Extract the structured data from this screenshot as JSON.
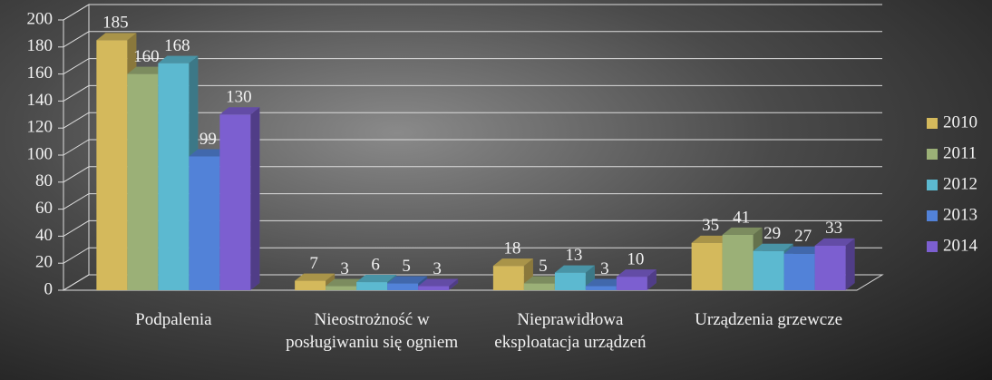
{
  "chart_data": {
    "type": "bar3d",
    "categories": [
      "Podpalenia",
      "Nieostrożność w posługiwaniu się ogniem",
      "Nieprawidłowa eksploatacja urządzeń",
      "Urządzenia grzewcze"
    ],
    "series": [
      {
        "name": "2010",
        "color": "#d4b95c",
        "values": [
          185,
          7,
          18,
          35
        ]
      },
      {
        "name": "2011",
        "color": "#9bb077",
        "values": [
          160,
          3,
          5,
          41
        ]
      },
      {
        "name": "2012",
        "color": "#5cb9d0",
        "values": [
          168,
          6,
          13,
          29
        ]
      },
      {
        "name": "2013",
        "color": "#5282d8",
        "values": [
          99,
          5,
          3,
          27
        ]
      },
      {
        "name": "2014",
        "color": "#7c5fd0",
        "values": [
          130,
          3,
          10,
          33
        ]
      }
    ],
    "ylim": [
      0,
      200
    ],
    "yticks": [
      0,
      20,
      40,
      60,
      80,
      100,
      120,
      140,
      160,
      180,
      200
    ],
    "grid": true,
    "legend": "right"
  }
}
